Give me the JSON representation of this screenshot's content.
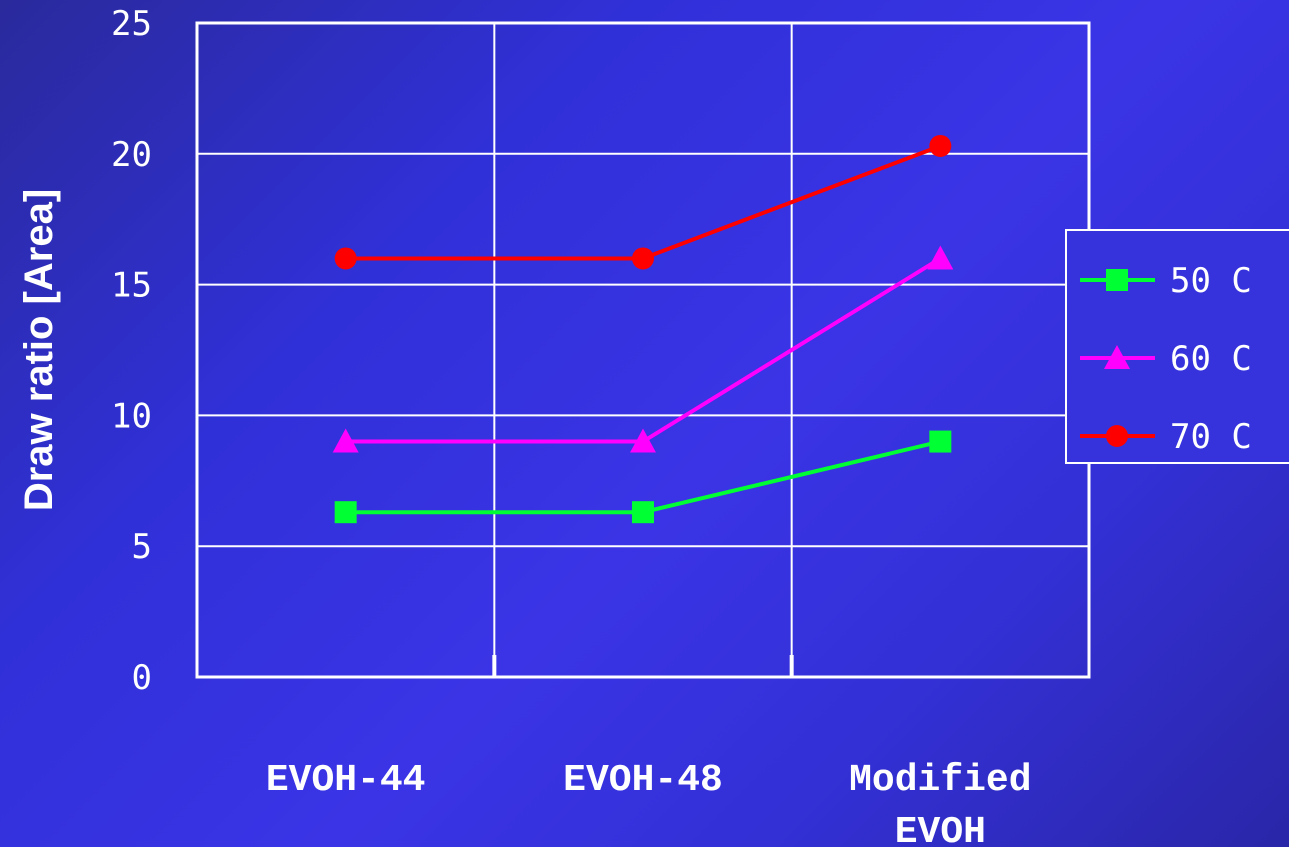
{
  "chart_data": {
    "type": "line",
    "categories": [
      "EVOH-44",
      "EVOH-48",
      "Modified EVOH"
    ],
    "category_lines": [
      [
        "EVOH-44"
      ],
      [
        "EVOH-48"
      ],
      [
        "Modified",
        "EVOH"
      ]
    ],
    "ylabel": "Draw ratio [Area]",
    "xlabel": "",
    "ylim": [
      0,
      25
    ],
    "yticks": [
      "0",
      "5",
      "10",
      "15",
      "20",
      "25"
    ],
    "grid": true,
    "legend_position": "right",
    "series": [
      {
        "name": "50 C",
        "values": [
          6.3,
          6.3,
          9.0
        ],
        "color": "#00ff33",
        "marker": "square"
      },
      {
        "name": "60 C",
        "values": [
          9.0,
          9.0,
          16.0
        ],
        "color": "#ff00ff",
        "marker": "triangle"
      },
      {
        "name": "70 C",
        "values": [
          16.0,
          16.0,
          20.3
        ],
        "color": "#ff0000",
        "marker": "circle"
      }
    ]
  }
}
